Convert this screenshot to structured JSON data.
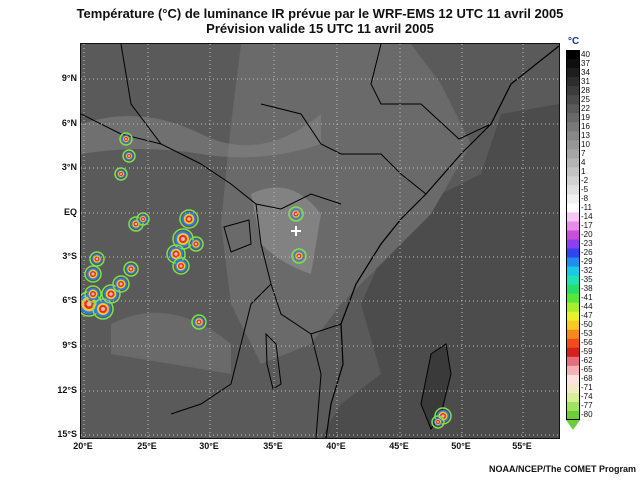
{
  "title": {
    "line1": "Température (°C) de luminance IR prévue par le WRF-EMS 12 UTC 11 avril 2005",
    "line2": "Prévision valide 15 UTC 11 avril 2005"
  },
  "map": {
    "lat_labels": [
      "9°N",
      "6°N",
      "3°N",
      "EQ",
      "3°S",
      "6°S",
      "9°S",
      "12°S",
      "15°S"
    ],
    "lon_labels": [
      "20°E",
      "25°E",
      "30°E",
      "35°E",
      "40°E",
      "45°E",
      "50°E",
      "55°E"
    ],
    "marker": "crosshair-icon",
    "background_color": "#4c4c4c",
    "grid": true
  },
  "colorbar": {
    "unit": "°C",
    "min": -80,
    "max": 40,
    "ticks": [
      "40",
      "37",
      "34",
      "31",
      "28",
      "25",
      "22",
      "19",
      "16",
      "13",
      "10",
      "7",
      "4",
      "1",
      "-2",
      "-5",
      "-8",
      "-11",
      "-14",
      "-17",
      "-20",
      "-23",
      "-26",
      "-29",
      "-32",
      "-35",
      "-38",
      "-41",
      "-44",
      "-47",
      "-50",
      "-53",
      "-56",
      "-59",
      "-62",
      "-65",
      "-68",
      "-71",
      "-74",
      "-77",
      "-80"
    ],
    "colors": [
      "#000000",
      "#0f0f0f",
      "#1e1e1e",
      "#2d2d2d",
      "#3c3c3c",
      "#4b4b4b",
      "#5a5a5a",
      "#696969",
      "#787878",
      "#878787",
      "#969696",
      "#a5a5a5",
      "#b4b4b4",
      "#c3c3c3",
      "#d2d2d2",
      "#e1e1e1",
      "#f0f0f0",
      "#ffffff",
      "#f7c6f7",
      "#e98be9",
      "#c84fd8",
      "#8a3ff0",
      "#2d46f2",
      "#1f8df2",
      "#19c9e8",
      "#1ee3b4",
      "#23e06a",
      "#58e63a",
      "#a6ee2e",
      "#e8f02a",
      "#f7c923",
      "#f6891e",
      "#f24b1a",
      "#d6201f",
      "#e3707a",
      "#f4b2b4",
      "#fbe4de",
      "#f3e9c8",
      "#d8ef98",
      "#9fe35e",
      "#6ccf3a"
    ]
  },
  "credit": "NOAA/NCEP/The COMET Program"
}
